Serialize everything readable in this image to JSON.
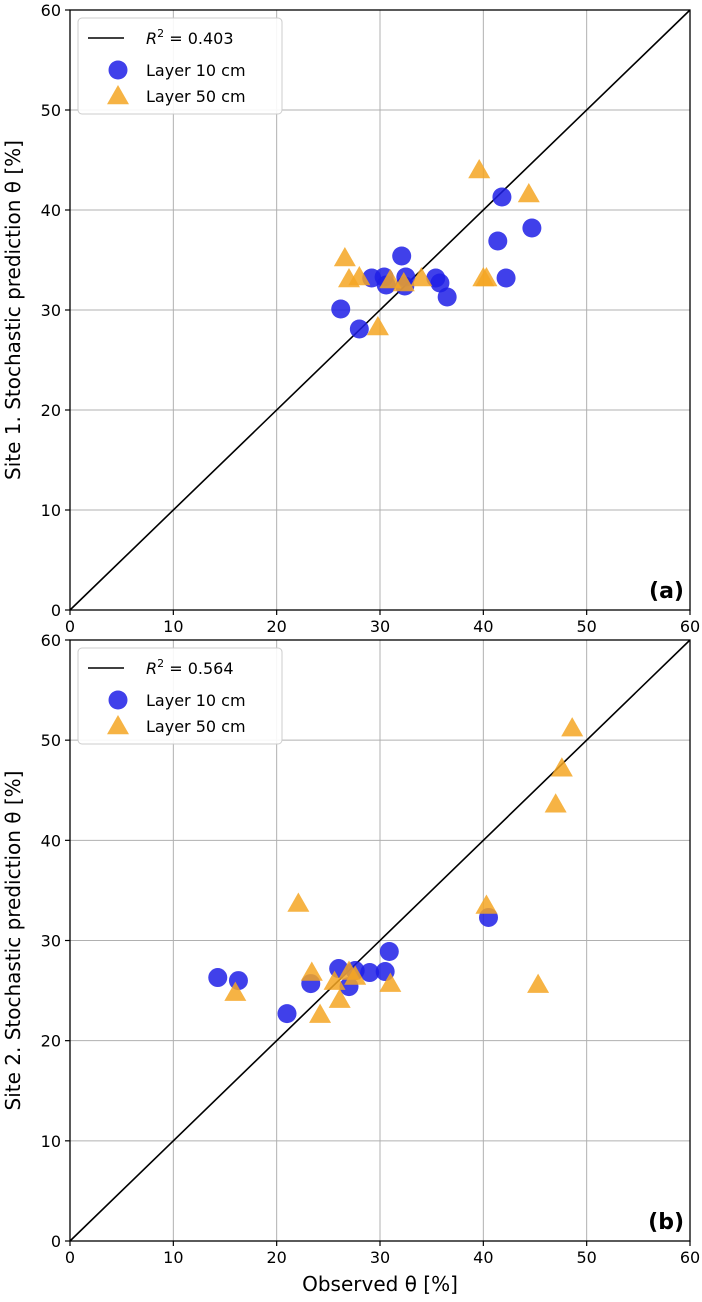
{
  "chart_data": [
    {
      "type": "scatter",
      "panel_label": "(a)",
      "ylabel": "Site 1. Stochastic prediction θ [%]",
      "xlabel": "",
      "xlim": [
        0,
        60
      ],
      "ylim": [
        0,
        60
      ],
      "xticks": [
        0,
        10,
        20,
        30,
        40,
        50,
        60
      ],
      "yticks": [
        0,
        10,
        20,
        30,
        40,
        50,
        60
      ],
      "grid": true,
      "legend_position": "top-left",
      "reference_line": {
        "label": "R² = 0.403",
        "r2_prefix": "R",
        "r2_value": " = 0.403",
        "x": [
          0,
          60
        ],
        "y": [
          0,
          60
        ],
        "color": "#000000"
      },
      "series": [
        {
          "name": "Layer 10 cm",
          "marker": "circle",
          "color": "#1f1fe6",
          "points": [
            [
              26.2,
              30.1
            ],
            [
              28.0,
              28.1
            ],
            [
              29.2,
              33.2
            ],
            [
              30.4,
              33.3
            ],
            [
              30.6,
              32.5
            ],
            [
              32.1,
              35.4
            ],
            [
              32.4,
              32.4
            ],
            [
              32.5,
              33.3
            ],
            [
              35.4,
              33.2
            ],
            [
              35.8,
              32.7
            ],
            [
              36.5,
              31.3
            ],
            [
              41.4,
              36.9
            ],
            [
              41.8,
              41.3
            ],
            [
              42.2,
              33.2
            ],
            [
              44.7,
              38.2
            ]
          ]
        },
        {
          "name": "Layer 50 cm",
          "marker": "triangle",
          "color": "#f5a623",
          "points": [
            [
              26.6,
              35.2
            ],
            [
              27.0,
              33.1
            ],
            [
              28.0,
              33.3
            ],
            [
              29.8,
              28.3
            ],
            [
              31.0,
              33.0
            ],
            [
              32.3,
              32.7
            ],
            [
              34.0,
              33.2
            ],
            [
              39.6,
              44.0
            ],
            [
              40.0,
              33.2
            ],
            [
              40.3,
              33.2
            ],
            [
              44.4,
              41.6
            ]
          ]
        }
      ]
    },
    {
      "type": "scatter",
      "panel_label": "(b)",
      "ylabel": "Site 2. Stochastic prediction θ [%]",
      "xlabel": "Observed θ [%]",
      "xlim": [
        0,
        60
      ],
      "ylim": [
        0,
        60
      ],
      "xticks": [
        0,
        10,
        20,
        30,
        40,
        50,
        60
      ],
      "yticks": [
        0,
        10,
        20,
        30,
        40,
        50,
        60
      ],
      "grid": true,
      "legend_position": "top-left",
      "reference_line": {
        "label": "R² = 0.564",
        "r2_prefix": "R",
        "r2_value": " = 0.564",
        "x": [
          0,
          60
        ],
        "y": [
          0,
          60
        ],
        "color": "#000000"
      },
      "series": [
        {
          "name": "Layer 10 cm",
          "marker": "circle",
          "color": "#1f1fe6",
          "points": [
            [
              14.3,
              26.3
            ],
            [
              16.3,
              26.0
            ],
            [
              21.0,
              22.7
            ],
            [
              23.3,
              25.7
            ],
            [
              26.0,
              27.2
            ],
            [
              27.0,
              25.4
            ],
            [
              27.6,
              27.0
            ],
            [
              29.0,
              26.8
            ],
            [
              30.5,
              26.9
            ],
            [
              30.9,
              28.9
            ],
            [
              40.5,
              32.3
            ]
          ]
        },
        {
          "name": "Layer 50 cm",
          "marker": "triangle",
          "color": "#f5a623",
          "points": [
            [
              16.0,
              24.8
            ],
            [
              22.1,
              33.7
            ],
            [
              23.4,
              26.8
            ],
            [
              24.2,
              22.6
            ],
            [
              25.6,
              25.9
            ],
            [
              26.1,
              24.1
            ],
            [
              27.0,
              26.9
            ],
            [
              27.6,
              26.4
            ],
            [
              31.0,
              25.7
            ],
            [
              40.3,
              33.5
            ],
            [
              45.3,
              25.6
            ],
            [
              47.0,
              43.6
            ],
            [
              47.6,
              47.2
            ],
            [
              48.6,
              51.2
            ]
          ]
        }
      ]
    }
  ]
}
